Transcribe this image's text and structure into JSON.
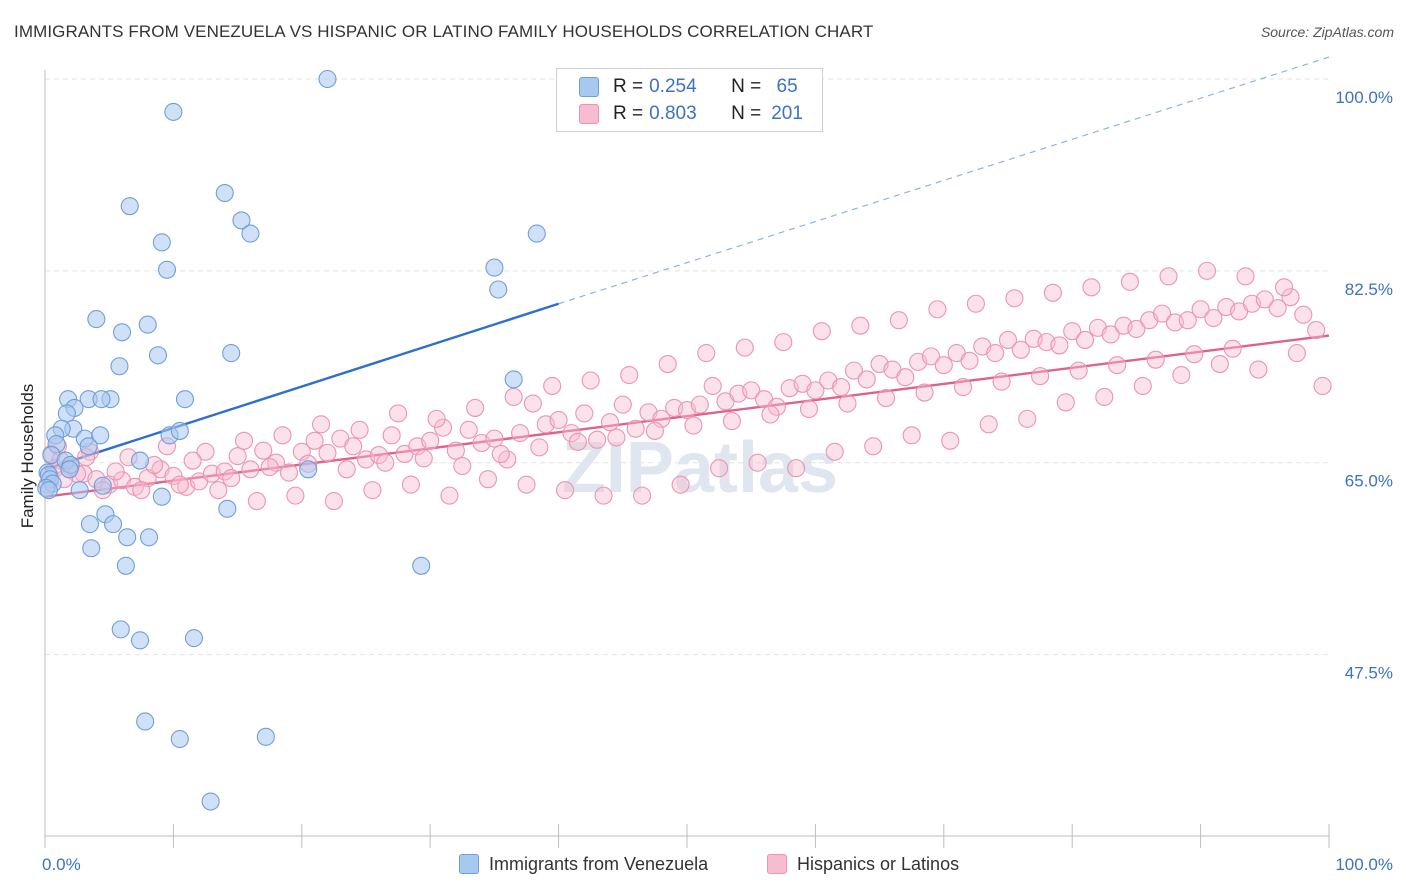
{
  "title": "IMMIGRANTS FROM VENEZUELA VS HISPANIC OR LATINO FAMILY HOUSEHOLDS CORRELATION CHART",
  "source": "Source: ZipAtlas.com",
  "colors": {
    "blue_fill": "#a9c8f0",
    "blue_stroke": "#6f9fd8",
    "blue_line": "#2f6fce",
    "pink_fill": "#f6bccf",
    "pink_stroke": "#ec94b2",
    "pink_line": "#e0608e",
    "axis_text": "#3b72c7",
    "grid": "#e3e3e3"
  },
  "legend": {
    "rows": [
      {
        "r_label": "R = ",
        "r_value": "0.254",
        "n_label": "N = ",
        "n_value": " 65"
      },
      {
        "r_label": "R = ",
        "r_value": "0.803",
        "n_label": "N = ",
        "n_value": "201"
      }
    ]
  },
  "chart_data": {
    "type": "scatter",
    "title": "IMMIGRANTS FROM VENEZUELA VS HISPANIC OR LATINO FAMILY HOUSEHOLDS CORRELATION CHART",
    "xlabel": "",
    "ylabel": "Family Households",
    "xlim": [
      0,
      100
    ],
    "ylim": [
      30,
      102
    ],
    "x_tick_labels": [
      "0.0%",
      "100.0%"
    ],
    "y_ticks": [
      47.5,
      65.0,
      82.5,
      100.0
    ],
    "y_tick_labels": [
      "47.5%",
      "65.0%",
      "82.5%",
      "100.0%"
    ],
    "watermark": "ZIPatlas",
    "grid": true,
    "legend_position": "top-center",
    "series": [
      {
        "name": "Immigrants from Venezuela",
        "color": "#a9c8f0",
        "trend": {
          "x": [
            0,
            40
          ],
          "y": [
            64.4,
            79.5
          ],
          "extend_to": [
            100,
            102
          ]
        },
        "points": [
          [
            22.0,
            100.0
          ],
          [
            10.0,
            97.0
          ],
          [
            14.0,
            89.6
          ],
          [
            6.6,
            88.4
          ],
          [
            15.3,
            87.1
          ],
          [
            16.0,
            85.9
          ],
          [
            38.3,
            85.9
          ],
          [
            9.1,
            85.1
          ],
          [
            9.5,
            82.6
          ],
          [
            35.0,
            82.8
          ],
          [
            35.3,
            80.8
          ],
          [
            4.0,
            78.1
          ],
          [
            8.0,
            77.6
          ],
          [
            6.0,
            76.9
          ],
          [
            8.8,
            74.8
          ],
          [
            14.5,
            75.0
          ],
          [
            5.8,
            73.8
          ],
          [
            36.5,
            72.6
          ],
          [
            1.8,
            70.8
          ],
          [
            3.4,
            70.8
          ],
          [
            5.1,
            70.8
          ],
          [
            4.4,
            70.8
          ],
          [
            10.9,
            70.8
          ],
          [
            2.3,
            70.0
          ],
          [
            1.7,
            69.5
          ],
          [
            2.2,
            68.1
          ],
          [
            1.3,
            68.1
          ],
          [
            0.8,
            67.5
          ],
          [
            9.7,
            67.5
          ],
          [
            10.5,
            67.9
          ],
          [
            3.1,
            67.2
          ],
          [
            4.3,
            67.5
          ],
          [
            0.9,
            66.7
          ],
          [
            3.4,
            66.5
          ],
          [
            0.5,
            65.7
          ],
          [
            1.6,
            65.2
          ],
          [
            7.4,
            65.2
          ],
          [
            2.0,
            64.8
          ],
          [
            1.9,
            64.4
          ],
          [
            0.2,
            64.1
          ],
          [
            0.3,
            63.9
          ],
          [
            0.4,
            63.5
          ],
          [
            0.6,
            63.1
          ],
          [
            0.1,
            62.7
          ],
          [
            0.3,
            62.5
          ],
          [
            2.7,
            62.5
          ],
          [
            4.5,
            62.9
          ],
          [
            9.1,
            61.9
          ],
          [
            14.2,
            60.8
          ],
          [
            4.7,
            60.3
          ],
          [
            3.5,
            59.4
          ],
          [
            5.3,
            59.4
          ],
          [
            6.4,
            58.2
          ],
          [
            8.1,
            58.2
          ],
          [
            3.6,
            57.2
          ],
          [
            6.3,
            55.6
          ],
          [
            29.3,
            55.6
          ],
          [
            5.9,
            49.8
          ],
          [
            7.4,
            48.8
          ],
          [
            11.6,
            49.0
          ],
          [
            7.8,
            41.4
          ],
          [
            10.5,
            39.8
          ],
          [
            17.2,
            40.0
          ],
          [
            12.9,
            34.1
          ],
          [
            20.5,
            64.4
          ]
        ]
      },
      {
        "name": "Hispanics or Latinos",
        "color": "#f6bccf",
        "trend": {
          "x": [
            0,
            100
          ],
          "y": [
            61.9,
            76.6
          ]
        },
        "points": [
          [
            0.5,
            65.8
          ],
          [
            1.2,
            65.2
          ],
          [
            2.0,
            64.6
          ],
          [
            3.0,
            64.0
          ],
          [
            4.0,
            63.5
          ],
          [
            5.0,
            63.0
          ],
          [
            6.0,
            63.4
          ],
          [
            7.0,
            62.8
          ],
          [
            8.0,
            63.6
          ],
          [
            9.0,
            64.4
          ],
          [
            10.0,
            63.8
          ],
          [
            11.0,
            62.8
          ],
          [
            12.0,
            63.3
          ],
          [
            13.0,
            64.0
          ],
          [
            14.0,
            64.2
          ],
          [
            15.0,
            65.6
          ],
          [
            16.0,
            64.4
          ],
          [
            17.0,
            66.1
          ],
          [
            18.0,
            65.0
          ],
          [
            19.0,
            64.1
          ],
          [
            20.0,
            66.0
          ],
          [
            21.0,
            67.0
          ],
          [
            22.0,
            65.9
          ],
          [
            23.0,
            67.2
          ],
          [
            24.0,
            66.5
          ],
          [
            25.0,
            65.3
          ],
          [
            26.0,
            65.7
          ],
          [
            27.0,
            67.5
          ],
          [
            28.0,
            65.8
          ],
          [
            29.0,
            66.5
          ],
          [
            30.0,
            67.0
          ],
          [
            31.0,
            68.2
          ],
          [
            32.0,
            66.1
          ],
          [
            33.0,
            68.0
          ],
          [
            34.0,
            66.8
          ],
          [
            35.0,
            67.2
          ],
          [
            36.0,
            65.3
          ],
          [
            37.0,
            67.7
          ],
          [
            38.0,
            70.4
          ],
          [
            39.0,
            68.5
          ],
          [
            40.0,
            68.9
          ],
          [
            41.0,
            67.7
          ],
          [
            42.0,
            69.5
          ],
          [
            43.0,
            67.1
          ],
          [
            44.0,
            68.7
          ],
          [
            45.0,
            70.3
          ],
          [
            46.0,
            68.1
          ],
          [
            47.0,
            69.6
          ],
          [
            48.0,
            69.0
          ],
          [
            49.0,
            70.0
          ],
          [
            50.0,
            69.8
          ],
          [
            51.0,
            70.3
          ],
          [
            52.0,
            72.0
          ],
          [
            53.0,
            70.6
          ],
          [
            54.0,
            71.3
          ],
          [
            55.0,
            71.6
          ],
          [
            56.0,
            70.8
          ],
          [
            57.0,
            70.1
          ],
          [
            58.0,
            71.8
          ],
          [
            59.0,
            72.2
          ],
          [
            60.0,
            71.6
          ],
          [
            61.0,
            72.5
          ],
          [
            62.0,
            71.9
          ],
          [
            63.0,
            73.4
          ],
          [
            64.0,
            72.6
          ],
          [
            65.0,
            74.0
          ],
          [
            66.0,
            73.5
          ],
          [
            67.0,
            72.8
          ],
          [
            68.0,
            74.2
          ],
          [
            69.0,
            74.7
          ],
          [
            70.0,
            73.9
          ],
          [
            71.0,
            75.0
          ],
          [
            72.0,
            74.3
          ],
          [
            73.0,
            75.6
          ],
          [
            74.0,
            75.0
          ],
          [
            75.0,
            76.2
          ],
          [
            76.0,
            75.3
          ],
          [
            77.0,
            76.3
          ],
          [
            78.0,
            76.0
          ],
          [
            79.0,
            75.7
          ],
          [
            80.0,
            77.0
          ],
          [
            81.0,
            76.2
          ],
          [
            82.0,
            77.3
          ],
          [
            83.0,
            76.7
          ],
          [
            84.0,
            77.5
          ],
          [
            85.0,
            77.2
          ],
          [
            86.0,
            78.0
          ],
          [
            87.0,
            78.6
          ],
          [
            88.0,
            77.8
          ],
          [
            89.0,
            78.0
          ],
          [
            90.0,
            79.0
          ],
          [
            91.0,
            78.2
          ],
          [
            92.0,
            79.2
          ],
          [
            93.0,
            78.8
          ],
          [
            94.0,
            79.5
          ],
          [
            95.0,
            79.9
          ],
          [
            96.0,
            79.1
          ],
          [
            97.0,
            80.1
          ],
          [
            98.0,
            78.5
          ],
          [
            99.0,
            77.1
          ],
          [
            2.5,
            64.0
          ],
          [
            4.5,
            62.5
          ],
          [
            7.5,
            62.5
          ],
          [
            10.5,
            63.0
          ],
          [
            13.5,
            62.5
          ],
          [
            16.5,
            61.5
          ],
          [
            19.5,
            62.0
          ],
          [
            22.5,
            61.5
          ],
          [
            25.5,
            62.5
          ],
          [
            28.5,
            63.0
          ],
          [
            31.5,
            62.0
          ],
          [
            34.5,
            63.5
          ],
          [
            37.5,
            63.0
          ],
          [
            40.5,
            62.5
          ],
          [
            43.5,
            62.0
          ],
          [
            46.5,
            62.0
          ],
          [
            49.5,
            63.0
          ],
          [
            52.5,
            64.5
          ],
          [
            55.5,
            65.0
          ],
          [
            58.5,
            64.5
          ],
          [
            61.5,
            66.0
          ],
          [
            64.5,
            66.5
          ],
          [
            67.5,
            67.5
          ],
          [
            70.5,
            67.0
          ],
          [
            73.5,
            68.5
          ],
          [
            76.5,
            69.0
          ],
          [
            79.5,
            70.5
          ],
          [
            82.5,
            71.0
          ],
          [
            85.5,
            72.0
          ],
          [
            88.5,
            73.0
          ],
          [
            91.5,
            74.0
          ],
          [
            94.5,
            73.5
          ],
          [
            97.5,
            75.0
          ],
          [
            99.5,
            72.0
          ],
          [
            1.0,
            66.5
          ],
          [
            3.5,
            66.0
          ],
          [
            6.5,
            65.5
          ],
          [
            9.5,
            66.5
          ],
          [
            12.5,
            66.0
          ],
          [
            15.5,
            67.0
          ],
          [
            18.5,
            67.5
          ],
          [
            21.5,
            68.5
          ],
          [
            24.5,
            68.0
          ],
          [
            27.5,
            69.5
          ],
          [
            30.5,
            69.0
          ],
          [
            33.5,
            70.0
          ],
          [
            36.5,
            71.0
          ],
          [
            39.5,
            72.0
          ],
          [
            42.5,
            72.5
          ],
          [
            45.5,
            73.0
          ],
          [
            48.5,
            74.0
          ],
          [
            51.5,
            75.0
          ],
          [
            54.5,
            75.5
          ],
          [
            57.5,
            76.0
          ],
          [
            60.5,
            77.0
          ],
          [
            63.5,
            77.5
          ],
          [
            66.5,
            78.0
          ],
          [
            69.5,
            79.0
          ],
          [
            72.5,
            79.5
          ],
          [
            75.5,
            80.0
          ],
          [
            78.5,
            80.5
          ],
          [
            81.5,
            81.0
          ],
          [
            84.5,
            81.5
          ],
          [
            87.5,
            82.0
          ],
          [
            90.5,
            82.5
          ],
          [
            93.5,
            82.0
          ],
          [
            96.5,
            81.0
          ],
          [
            0.2,
            63.0
          ],
          [
            0.8,
            64.5
          ],
          [
            1.5,
            63.5
          ],
          [
            3.2,
            65.5
          ],
          [
            5.5,
            64.2
          ],
          [
            8.5,
            64.8
          ],
          [
            11.5,
            65.2
          ],
          [
            14.5,
            63.6
          ],
          [
            17.5,
            64.6
          ],
          [
            20.5,
            64.9
          ],
          [
            23.5,
            64.4
          ],
          [
            26.5,
            65.0
          ],
          [
            29.5,
            65.4
          ],
          [
            32.5,
            64.7
          ],
          [
            35.5,
            65.8
          ],
          [
            38.5,
            66.4
          ],
          [
            41.5,
            66.9
          ],
          [
            44.5,
            67.3
          ],
          [
            47.5,
            67.9
          ],
          [
            50.5,
            68.4
          ],
          [
            53.5,
            68.8
          ],
          [
            56.5,
            69.4
          ],
          [
            59.5,
            69.9
          ],
          [
            62.5,
            70.4
          ],
          [
            65.5,
            70.9
          ],
          [
            68.5,
            71.4
          ],
          [
            71.5,
            71.9
          ],
          [
            74.5,
            72.4
          ],
          [
            77.5,
            72.9
          ],
          [
            80.5,
            73.4
          ],
          [
            83.5,
            73.9
          ],
          [
            86.5,
            74.4
          ],
          [
            89.5,
            74.9
          ],
          [
            92.5,
            75.4
          ]
        ]
      }
    ]
  },
  "bottom_legend": [
    {
      "label": "Immigrants from Venezuela"
    },
    {
      "label": "Hispanics or Latinos"
    }
  ]
}
